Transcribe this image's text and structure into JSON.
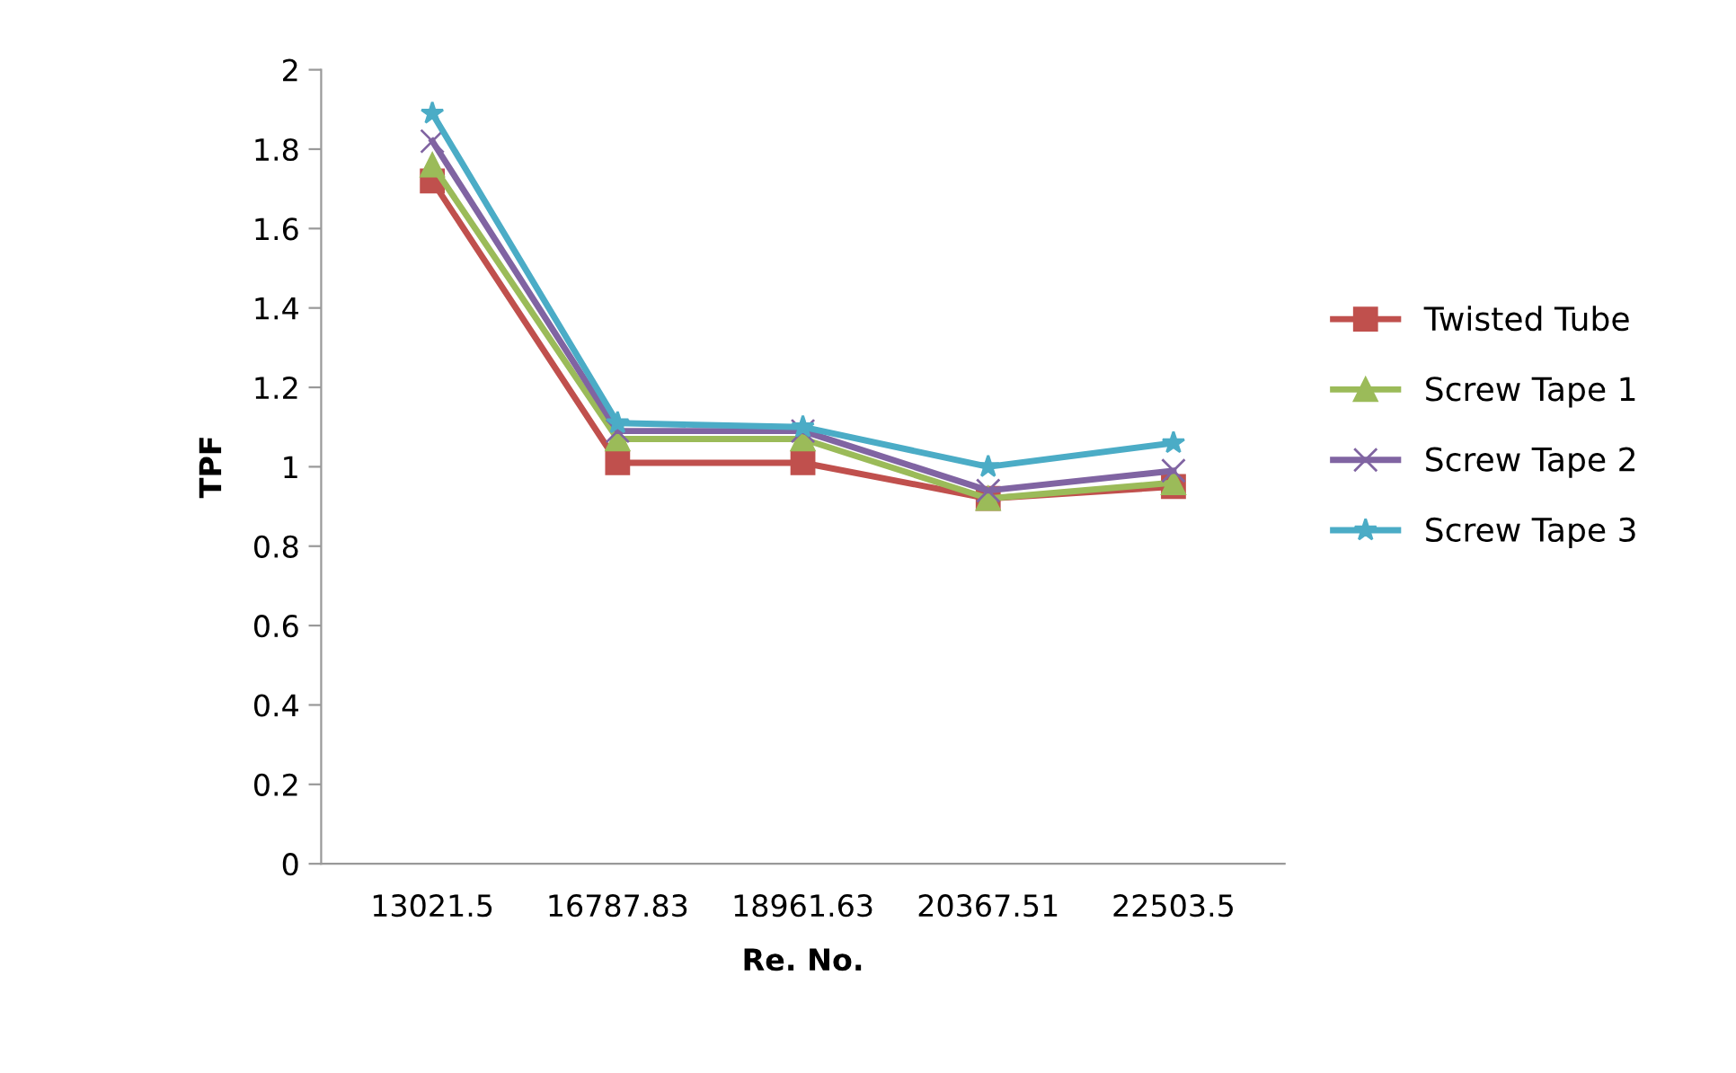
{
  "chart_data": {
    "type": "line",
    "xlabel": "Re. No.",
    "ylabel": "TPF",
    "categories": [
      "13021.5",
      "16787.83",
      "18961.63",
      "20367.51",
      "22503.5"
    ],
    "series": [
      {
        "name": "Twisted Tube",
        "color": "#c0504d",
        "marker": "square",
        "values": [
          1.72,
          1.01,
          1.01,
          0.92,
          0.95
        ]
      },
      {
        "name": "Screw Tape 1",
        "color": "#9bbb59",
        "marker": "triangle",
        "values": [
          1.76,
          1.07,
          1.07,
          0.92,
          0.96
        ]
      },
      {
        "name": "Screw Tape 2",
        "color": "#8064a2",
        "marker": "cross",
        "values": [
          1.82,
          1.09,
          1.09,
          0.94,
          0.99
        ]
      },
      {
        "name": "Screw Tape 3",
        "color": "#4bacc6",
        "marker": "star",
        "values": [
          1.89,
          1.11,
          1.1,
          1.0,
          1.06
        ]
      }
    ],
    "ylim": [
      0,
      2
    ],
    "yticks": [
      0,
      0.2,
      0.4,
      0.6,
      0.8,
      1,
      1.2,
      1.4,
      1.6,
      1.8,
      2
    ],
    "grid": false,
    "legend": "right",
    "line_style": "solid"
  }
}
